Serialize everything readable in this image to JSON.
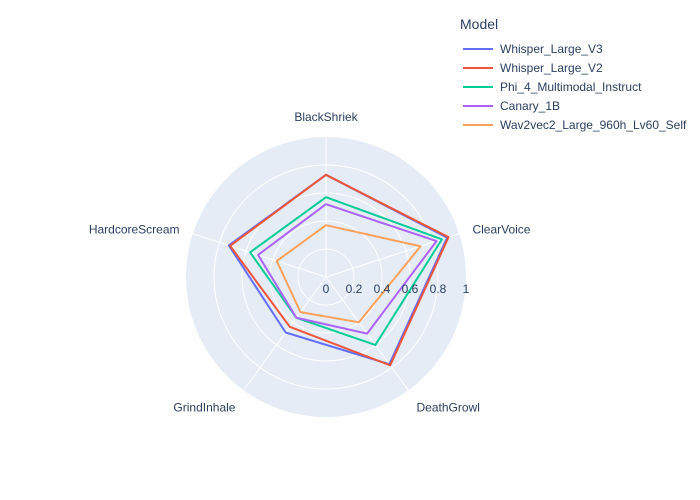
{
  "chart_data": {
    "type": "radar",
    "axes": [
      "BlackShriek",
      "ClearVoice",
      "DeathGrowl",
      "GrindInhale",
      "HardcoreScream"
    ],
    "radial_range": [
      0,
      1
    ],
    "radial_ticks": [
      "0",
      "0.2",
      "0.4",
      "0.6",
      "0.8",
      "1"
    ],
    "radial_tick_values": [
      0,
      0.2,
      0.4,
      0.6,
      0.8,
      1
    ],
    "legend_title": "Model",
    "legend_position": "top-right",
    "series": [
      {
        "name": "Whisper_Large_V3",
        "color": "#636efa",
        "values": [
          0.73,
          0.91,
          0.77,
          0.49,
          0.73
        ]
      },
      {
        "name": "Whisper_Large_V2",
        "color": "#EF553B",
        "values": [
          0.73,
          0.92,
          0.78,
          0.44,
          0.72
        ]
      },
      {
        "name": "Phi_4_Multimodal_Instruct",
        "color": "#00cc96",
        "values": [
          0.57,
          0.87,
          0.6,
          0.36,
          0.57
        ]
      },
      {
        "name": "Canary_1B",
        "color": "#ab63fa",
        "values": [
          0.52,
          0.83,
          0.5,
          0.36,
          0.51
        ]
      },
      {
        "name": "Wav2vec2_Large_960h_Lv60_Self",
        "color": "#FFA15A",
        "values": [
          0.37,
          0.71,
          0.4,
          0.31,
          0.37
        ]
      }
    ]
  }
}
